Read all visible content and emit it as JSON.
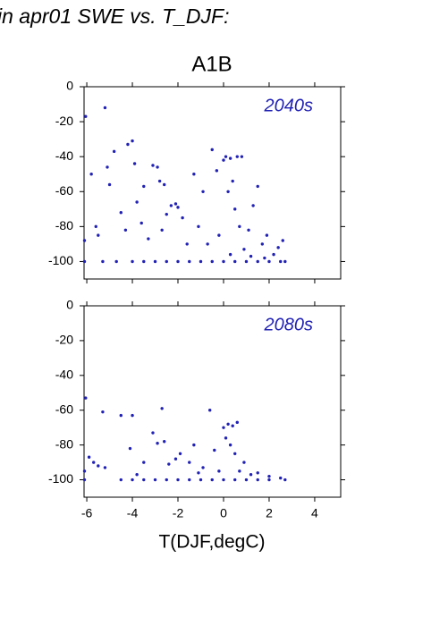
{
  "header": "in apr01 SWE vs. T_DJF:",
  "chart_data": [
    {
      "type": "scatter",
      "title": "A1B",
      "annotation": "2040s",
      "color": "#2121b5",
      "xlim": [
        -6.12,
        5.14
      ],
      "ylim": [
        -110,
        0
      ],
      "xticks": [
        -6,
        -4,
        -2,
        0,
        2,
        4
      ],
      "yticks": [
        0,
        -20,
        -40,
        -60,
        -80,
        -100
      ],
      "xtick_labels": false,
      "x": [
        -6.05,
        -5.2,
        -6.1,
        -6.1,
        -5.8,
        -5.6,
        -5.5,
        -5.1,
        -5.0,
        -4.8,
        -4.2,
        -4.0,
        -4.5,
        -4.3,
        -3.9,
        -3.8,
        -3.6,
        -3.5,
        -3.3,
        -3.1,
        -2.9,
        -2.8,
        -2.6,
        -2.7,
        -2.5,
        -2.3,
        -2.1,
        -2.0,
        -1.8,
        -1.6,
        -1.3,
        -1.1,
        -0.9,
        -0.7,
        -0.5,
        -0.3,
        -0.2,
        0.0,
        0.1,
        0.3,
        0.6,
        0.8,
        0.2,
        0.4,
        0.5,
        0.7,
        0.9,
        1.1,
        1.3,
        1.5,
        1.7,
        1.9,
        2.2,
        2.4,
        2.6,
        -4.0,
        -3.5,
        -3.0,
        -2.5,
        -2.0,
        -1.5,
        -1.0,
        -0.5,
        0.0,
        0.5,
        1.0,
        1.5,
        2.0,
        2.5,
        2.7,
        -5.3,
        -4.7,
        1.2,
        1.8,
        0.3
      ],
      "y": [
        -17,
        -12,
        -88,
        -100,
        -50,
        -80,
        -85,
        -46,
        -56,
        -37,
        -33,
        -31,
        -72,
        -82,
        -44,
        -66,
        -78,
        -57,
        -87,
        -45,
        -46,
        -54,
        -56,
        -82,
        -73,
        -68,
        -67,
        -69,
        -75,
        -90,
        -50,
        -80,
        -60,
        -90,
        -36,
        -48,
        -85,
        -42,
        -40,
        -41,
        -40,
        -40,
        -60,
        -54,
        -70,
        -80,
        -93,
        -82,
        -68,
        -57,
        -90,
        -85,
        -96,
        -92,
        -88,
        -100,
        -100,
        -100,
        -100,
        -100,
        -100,
        -100,
        -100,
        -100,
        -100,
        -100,
        -100,
        -100,
        -100,
        -100,
        -100,
        -100,
        -97,
        -98,
        -96
      ]
    },
    {
      "type": "scatter",
      "annotation": "2080s",
      "xlabel": "T(DJF,degC)",
      "color": "#2121b5",
      "xlim": [
        -6.12,
        5.14
      ],
      "ylim": [
        -110,
        0
      ],
      "xticks": [
        -6,
        -4,
        -2,
        0,
        2,
        4
      ],
      "yticks": [
        0,
        -20,
        -40,
        -60,
        -80,
        -100
      ],
      "xtick_labels": true,
      "x": [
        -6.05,
        -6.1,
        -5.9,
        -5.7,
        -5.5,
        -5.3,
        -5.2,
        -4.5,
        -4.0,
        -4.1,
        -3.8,
        -3.5,
        -3.1,
        -2.9,
        -2.7,
        -2.6,
        -2.4,
        -2.1,
        -1.9,
        -1.5,
        -1.3,
        -1.1,
        -0.9,
        -0.6,
        -0.4,
        -0.2,
        0.0,
        0.1,
        0.2,
        0.4,
        0.6,
        0.3,
        0.5,
        0.7,
        0.9,
        1.2,
        1.5,
        2.0,
        2.5,
        -6.1,
        -4.5,
        -4.0,
        -3.5,
        -3.0,
        -2.5,
        -2.0,
        -1.5,
        -1.0,
        -0.5,
        0.0,
        0.5,
        1.0,
        1.5,
        2.0,
        2.7
      ],
      "y": [
        -53,
        -95,
        -87,
        -90,
        -92,
        -61,
        -93,
        -63,
        -63,
        -82,
        -97,
        -90,
        -73,
        -79,
        -59,
        -78,
        -91,
        -88,
        -85,
        -90,
        -80,
        -96,
        -93,
        -60,
        -83,
        -95,
        -70,
        -76,
        -68,
        -69,
        -67,
        -80,
        -85,
        -95,
        -90,
        -97,
        -96,
        -98,
        -99,
        -100,
        -100,
        -100,
        -100,
        -100,
        -100,
        -100,
        -100,
        -100,
        -100,
        -100,
        -100,
        -100,
        -100,
        -100,
        -100
      ]
    }
  ]
}
